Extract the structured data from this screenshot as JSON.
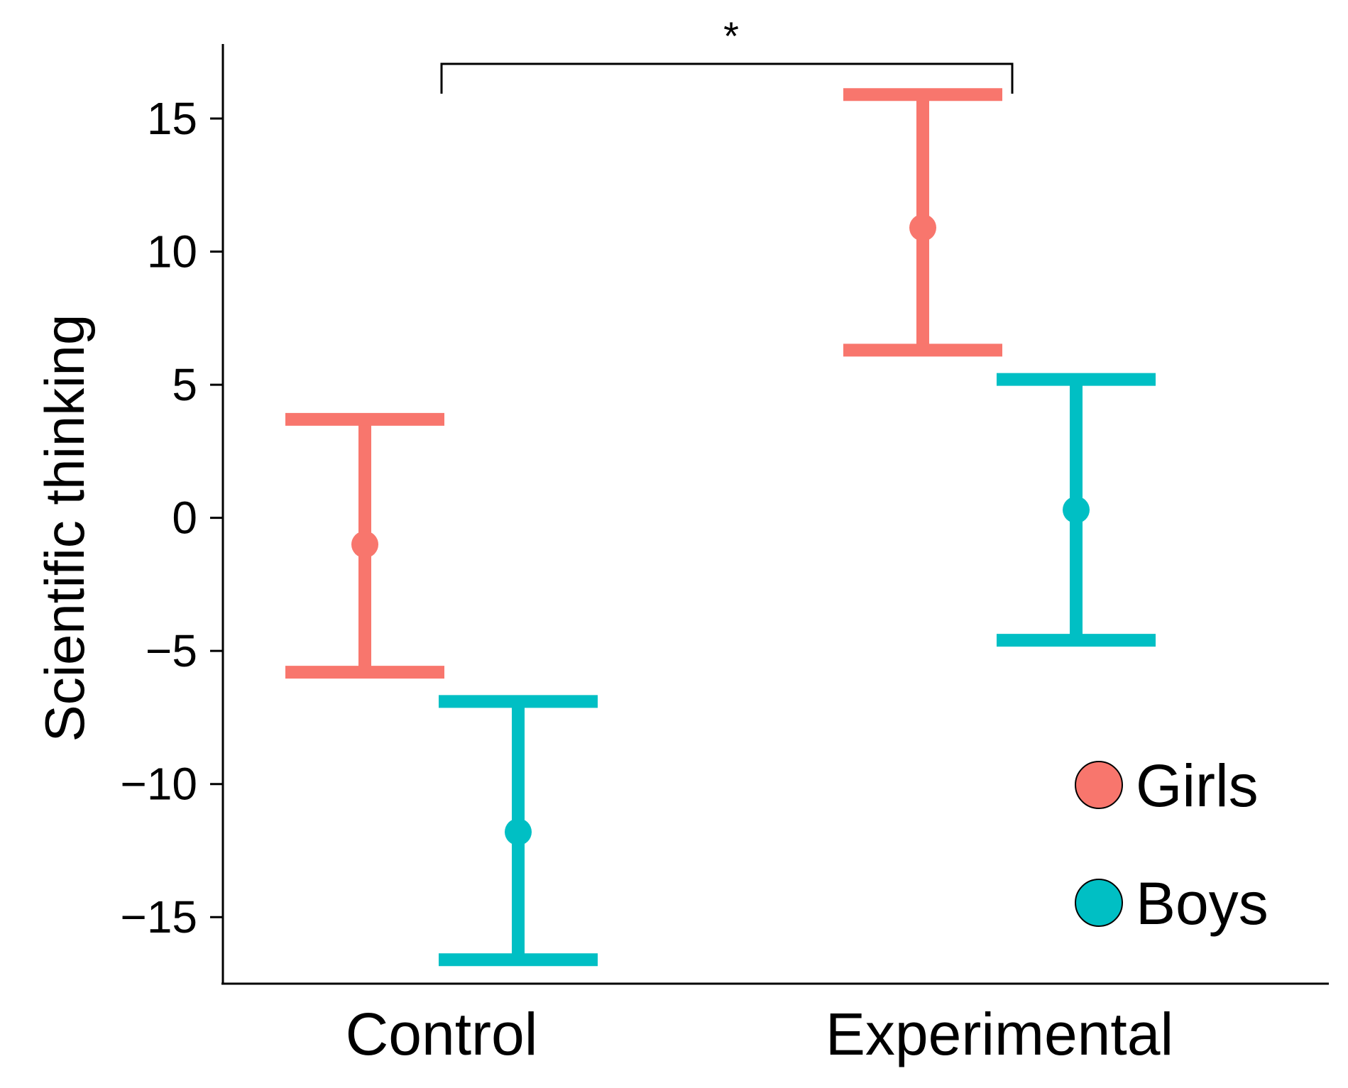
{
  "chart_data": {
    "type": "scatter",
    "subtype": "point-errorbar",
    "title": "",
    "xlabel": "",
    "ylabel": "Scientific thinking",
    "categories": [
      "Control",
      "Experimental"
    ],
    "ylim": [
      -17.5,
      17.8
    ],
    "yticks": [
      15,
      10,
      5,
      0,
      -5,
      -10,
      -15
    ],
    "ytick_labels": [
      "15",
      "10",
      "5",
      "0",
      "−5",
      "−10",
      "−15"
    ],
    "grid": false,
    "legend_position": "bottom-right",
    "series": [
      {
        "name": "Girls",
        "color": "#F8766D",
        "points": [
          {
            "category": "Control",
            "mean": -1.0,
            "low": -5.8,
            "high": 3.7
          },
          {
            "category": "Experimental",
            "mean": 10.9,
            "low": 6.3,
            "high": 15.9
          }
        ]
      },
      {
        "name": "Boys",
        "color": "#00BFC4",
        "points": [
          {
            "category": "Control",
            "mean": -11.8,
            "low": -16.6,
            "high": -6.9
          },
          {
            "category": "Experimental",
            "mean": 0.3,
            "low": -4.6,
            "high": 5.2
          }
        ]
      }
    ],
    "annotation": {
      "text": "*",
      "from_category": "Control",
      "to_category": "Experimental"
    }
  }
}
